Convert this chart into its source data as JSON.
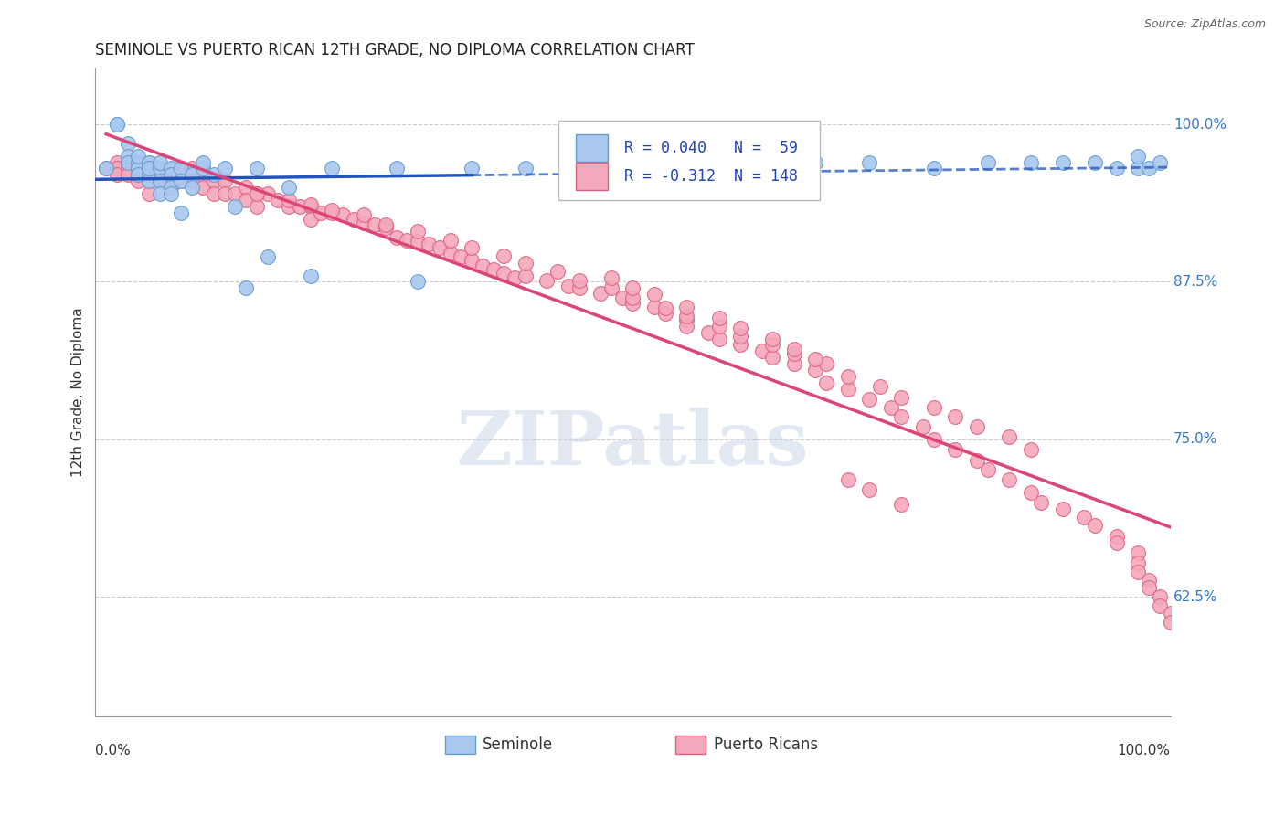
{
  "title": "SEMINOLE VS PUERTO RICAN 12TH GRADE, NO DIPLOMA CORRELATION CHART",
  "source": "Source: ZipAtlas.com",
  "ylabel": "12th Grade, No Diploma",
  "ytick_labels": [
    "100.0%",
    "87.5%",
    "75.0%",
    "62.5%"
  ],
  "ytick_values": [
    1.0,
    0.875,
    0.75,
    0.625
  ],
  "xlim": [
    0.0,
    1.0
  ],
  "ylim": [
    0.53,
    1.045
  ],
  "seminole_color": "#a8c8f0",
  "puerto_rican_color": "#f4a8bc",
  "seminole_edge": "#6699cc",
  "puerto_rican_edge": "#e06080",
  "trend_blue": "#2255bb",
  "trend_pink": "#dd4477",
  "R_seminole": 0.04,
  "N_seminole": 59,
  "R_puerto_rican": -0.312,
  "N_puerto_rican": 148,
  "background_color": "#ffffff",
  "grid_color": "#cccccc",
  "watermark": "ZIPatlas",
  "legend_r1_color": "#2255bb",
  "legend_r2_color": "#dd4477",
  "seminole_x": [
    0.01,
    0.02,
    0.02,
    0.03,
    0.03,
    0.03,
    0.04,
    0.04,
    0.04,
    0.04,
    0.05,
    0.05,
    0.05,
    0.05,
    0.05,
    0.05,
    0.06,
    0.06,
    0.06,
    0.06,
    0.07,
    0.07,
    0.07,
    0.07,
    0.08,
    0.08,
    0.08,
    0.09,
    0.09,
    0.1,
    0.1,
    0.11,
    0.12,
    0.13,
    0.14,
    0.15,
    0.16,
    0.18,
    0.2,
    0.22,
    0.28,
    0.3,
    0.35,
    0.4,
    0.47,
    0.53,
    0.6,
    0.67,
    0.72,
    0.78,
    0.83,
    0.87,
    0.9,
    0.93,
    0.95,
    0.97,
    0.97,
    0.98,
    0.99
  ],
  "seminole_y": [
    0.965,
    1.0,
    1.0,
    0.985,
    0.975,
    0.97,
    0.97,
    0.965,
    0.96,
    0.975,
    0.97,
    0.965,
    0.96,
    0.955,
    0.97,
    0.965,
    0.965,
    0.955,
    0.97,
    0.945,
    0.965,
    0.96,
    0.95,
    0.945,
    0.965,
    0.955,
    0.93,
    0.96,
    0.95,
    0.965,
    0.97,
    0.96,
    0.965,
    0.935,
    0.87,
    0.965,
    0.895,
    0.95,
    0.88,
    0.965,
    0.965,
    0.875,
    0.965,
    0.965,
    0.965,
    0.97,
    0.97,
    0.97,
    0.97,
    0.965,
    0.97,
    0.97,
    0.97,
    0.97,
    0.965,
    0.965,
    0.975,
    0.965,
    0.97
  ],
  "puerto_rican_x": [
    0.01,
    0.02,
    0.02,
    0.02,
    0.03,
    0.03,
    0.03,
    0.04,
    0.04,
    0.04,
    0.04,
    0.05,
    0.05,
    0.05,
    0.05,
    0.06,
    0.06,
    0.06,
    0.07,
    0.07,
    0.07,
    0.08,
    0.08,
    0.09,
    0.09,
    0.1,
    0.1,
    0.11,
    0.11,
    0.12,
    0.12,
    0.13,
    0.14,
    0.14,
    0.15,
    0.15,
    0.16,
    0.17,
    0.18,
    0.19,
    0.2,
    0.2,
    0.21,
    0.22,
    0.23,
    0.24,
    0.25,
    0.26,
    0.27,
    0.28,
    0.29,
    0.3,
    0.31,
    0.32,
    0.33,
    0.34,
    0.35,
    0.36,
    0.37,
    0.38,
    0.39,
    0.4,
    0.42,
    0.44,
    0.45,
    0.47,
    0.49,
    0.5,
    0.52,
    0.53,
    0.55,
    0.55,
    0.57,
    0.58,
    0.6,
    0.62,
    0.63,
    0.65,
    0.67,
    0.68,
    0.7,
    0.72,
    0.74,
    0.75,
    0.77,
    0.78,
    0.8,
    0.82,
    0.83,
    0.85,
    0.87,
    0.88,
    0.9,
    0.92,
    0.93,
    0.95,
    0.95,
    0.97,
    0.97,
    0.97,
    0.98,
    0.98,
    0.99,
    0.99,
    1.0,
    1.0,
    0.15,
    0.18,
    0.2,
    0.22,
    0.25,
    0.27,
    0.3,
    0.33,
    0.35,
    0.38,
    0.4,
    0.43,
    0.45,
    0.48,
    0.5,
    0.53,
    0.55,
    0.58,
    0.6,
    0.63,
    0.65,
    0.68,
    0.7,
    0.73,
    0.75,
    0.78,
    0.8,
    0.82,
    0.85,
    0.87,
    0.7,
    0.72,
    0.75,
    0.52,
    0.55,
    0.58,
    0.6,
    0.63,
    0.65,
    0.67,
    0.48,
    0.5
  ],
  "puerto_rican_y": [
    0.965,
    0.97,
    0.965,
    0.96,
    0.97,
    0.965,
    0.96,
    0.965,
    0.96,
    0.97,
    0.955,
    0.965,
    0.96,
    0.955,
    0.945,
    0.965,
    0.96,
    0.955,
    0.96,
    0.955,
    0.95,
    0.965,
    0.955,
    0.965,
    0.955,
    0.96,
    0.95,
    0.955,
    0.945,
    0.955,
    0.945,
    0.945,
    0.95,
    0.94,
    0.945,
    0.935,
    0.945,
    0.94,
    0.935,
    0.935,
    0.935,
    0.925,
    0.93,
    0.93,
    0.928,
    0.925,
    0.922,
    0.92,
    0.918,
    0.91,
    0.908,
    0.907,
    0.905,
    0.902,
    0.898,
    0.895,
    0.892,
    0.888,
    0.885,
    0.882,
    0.878,
    0.88,
    0.876,
    0.872,
    0.87,
    0.866,
    0.862,
    0.858,
    0.855,
    0.85,
    0.845,
    0.84,
    0.835,
    0.83,
    0.825,
    0.82,
    0.815,
    0.81,
    0.805,
    0.795,
    0.79,
    0.782,
    0.775,
    0.768,
    0.76,
    0.75,
    0.742,
    0.733,
    0.726,
    0.718,
    0.708,
    0.7,
    0.695,
    0.688,
    0.682,
    0.673,
    0.668,
    0.66,
    0.652,
    0.645,
    0.638,
    0.632,
    0.625,
    0.618,
    0.612,
    0.605,
    0.945,
    0.94,
    0.936,
    0.932,
    0.928,
    0.92,
    0.915,
    0.908,
    0.902,
    0.896,
    0.89,
    0.883,
    0.876,
    0.87,
    0.862,
    0.854,
    0.848,
    0.84,
    0.832,
    0.825,
    0.818,
    0.81,
    0.8,
    0.792,
    0.783,
    0.775,
    0.768,
    0.76,
    0.752,
    0.742,
    0.718,
    0.71,
    0.698,
    0.865,
    0.855,
    0.846,
    0.838,
    0.83,
    0.822,
    0.814,
    0.878,
    0.87
  ]
}
